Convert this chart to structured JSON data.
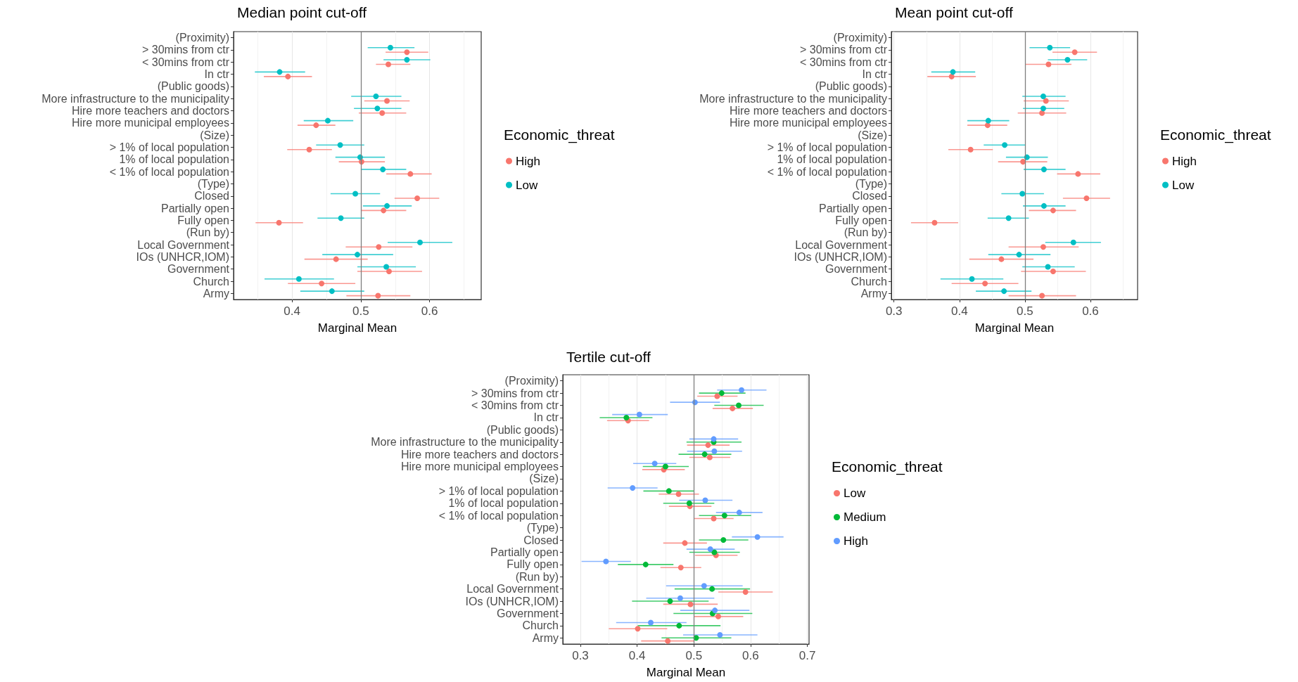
{
  "chart_data": [
    {
      "type": "scatter",
      "title": "Median point cut-off",
      "xlabel": "Marginal Mean",
      "legend_title": "Economic_threat",
      "orientation": "horizontal",
      "marker": "circle",
      "grid": "x",
      "legend": "right",
      "categories": [
        "(Proximity)",
        "> 30mins from ctr",
        "< 30mins from ctr",
        "In ctr",
        "(Public goods)",
        "More infrastructure to the municipality",
        "Hire more teachers and doctors",
        "Hire more municipal employees",
        "(Size)",
        "> 1% of local population",
        "1% of local population",
        "< 1% of local population",
        "(Type)",
        "Closed",
        "Partially open",
        "Fully open",
        "(Run by)",
        "Local Government",
        "IOs (UNHCR,IOM)",
        "Government",
        "Church",
        "Army"
      ],
      "xlim": [
        0.315,
        0.675
      ],
      "xticks": [
        0.4,
        0.5,
        0.6
      ],
      "ref_lines": [
        {
          "axis": "x",
          "value": 0.5,
          "color": "#7f7f7f"
        }
      ],
      "series": [
        {
          "name": "High",
          "color": "#f8766d",
          "values": [
            null,
            0.567,
            0.54,
            0.394,
            null,
            0.538,
            0.531,
            0.435,
            null,
            0.425,
            0.501,
            0.572,
            null,
            0.582,
            0.533,
            0.381,
            null,
            0.526,
            0.464,
            0.541,
            0.443,
            0.525
          ],
          "errors": [
            null,
            [
              0.536,
              0.598
            ],
            [
              0.522,
              0.572
            ],
            [
              0.359,
              0.429
            ],
            null,
            [
              0.505,
              0.571
            ],
            [
              0.497,
              0.566
            ],
            [
              0.408,
              0.463
            ],
            null,
            [
              0.393,
              0.458
            ],
            [
              0.468,
              0.535
            ],
            [
              0.537,
              0.603
            ],
            null,
            [
              0.549,
              0.614
            ],
            [
              0.5,
              0.566
            ],
            [
              0.347,
              0.416
            ],
            null,
            [
              0.478,
              0.575
            ],
            [
              0.418,
              0.51
            ],
            [
              0.495,
              0.589
            ],
            [
              0.394,
              0.492
            ],
            [
              0.479,
              0.572
            ]
          ]
        },
        {
          "name": "Low",
          "color": "#00bfc4",
          "values": [
            null,
            0.543,
            0.567,
            0.382,
            null,
            0.522,
            0.524,
            0.452,
            null,
            0.47,
            0.499,
            0.532,
            null,
            0.492,
            0.538,
            0.471,
            null,
            0.586,
            0.495,
            0.537,
            0.41,
            0.458
          ],
          "errors": [
            null,
            [
              0.51,
              0.578
            ],
            [
              0.533,
              0.601
            ],
            [
              0.346,
              0.419
            ],
            null,
            [
              0.486,
              0.559
            ],
            [
              0.49,
              0.559
            ],
            [
              0.417,
              0.489
            ],
            null,
            [
              0.435,
              0.505
            ],
            [
              0.463,
              0.535
            ],
            [
              0.5,
              0.566
            ],
            null,
            [
              0.456,
              0.528
            ],
            [
              0.503,
              0.574
            ],
            [
              0.437,
              0.505
            ],
            null,
            [
              0.539,
              0.633
            ],
            [
              0.444,
              0.547
            ],
            [
              0.495,
              0.58
            ],
            [
              0.36,
              0.461
            ],
            [
              0.412,
              0.505
            ]
          ]
        }
      ]
    },
    {
      "type": "scatter",
      "title": "Mean point cut-off",
      "xlabel": "Marginal Mean",
      "legend_title": "Economic_threat",
      "orientation": "horizontal",
      "marker": "circle",
      "grid": "x",
      "legend": "right",
      "categories": [
        "(Proximity)",
        "> 30mins from ctr",
        "< 30mins from ctr",
        "In ctr",
        "(Public goods)",
        "More infrastructure to the municipality",
        "Hire more teachers and doctors",
        "Hire more municipal employees",
        "(Size)",
        "> 1% of local population",
        "1% of local population",
        "< 1% of local population",
        "(Type)",
        "Closed",
        "Partially open",
        "Fully open",
        "(Run by)",
        "Local Government",
        "IOs (UNHCR,IOM)",
        "Government",
        "Church",
        "Army"
      ],
      "xlim": [
        0.296,
        0.672
      ],
      "xticks": [
        0.3,
        0.4,
        0.5,
        0.6
      ],
      "ref_lines": [
        {
          "axis": "x",
          "value": 0.5,
          "color": "#7f7f7f"
        }
      ],
      "series": [
        {
          "name": "High",
          "color": "#f8766d",
          "values": [
            null,
            0.576,
            0.536,
            0.388,
            null,
            0.532,
            0.526,
            0.443,
            null,
            0.417,
            0.497,
            0.581,
            null,
            0.594,
            0.543,
            0.362,
            null,
            0.528,
            0.464,
            0.543,
            0.439,
            0.526
          ],
          "errors": [
            null,
            [
              0.542,
              0.61
            ],
            [
              0.501,
              0.571
            ],
            [
              0.351,
              0.425
            ],
            null,
            [
              0.498,
              0.567
            ],
            [
              0.489,
              0.563
            ],
            [
              0.412,
              0.473
            ],
            null,
            [
              0.383,
              0.451
            ],
            [
              0.459,
              0.534
            ],
            [
              0.549,
              0.615
            ],
            null,
            [
              0.558,
              0.63
            ],
            [
              0.506,
              0.578
            ],
            [
              0.326,
              0.398
            ],
            null,
            [
              0.475,
              0.582
            ],
            [
              0.415,
              0.513
            ],
            [
              0.494,
              0.593
            ],
            [
              0.388,
              0.49
            ],
            [
              0.475,
              0.578
            ]
          ]
        },
        {
          "name": "Low",
          "color": "#00bfc4",
          "values": [
            null,
            0.538,
            0.565,
            0.39,
            null,
            0.528,
            0.528,
            0.444,
            null,
            0.469,
            0.503,
            0.529,
            null,
            0.496,
            0.529,
            0.475,
            null,
            0.574,
            0.491,
            0.535,
            0.419,
            0.468
          ],
          "errors": [
            null,
            [
              0.507,
              0.569
            ],
            [
              0.535,
              0.595
            ],
            [
              0.357,
              0.424
            ],
            null,
            [
              0.496,
              0.562
            ],
            [
              0.497,
              0.56
            ],
            [
              0.412,
              0.476
            ],
            null,
            [
              0.437,
              0.501
            ],
            [
              0.471,
              0.535
            ],
            [
              0.498,
              0.562
            ],
            null,
            [
              0.464,
              0.529
            ],
            [
              0.497,
              0.562
            ],
            [
              0.443,
              0.506
            ],
            null,
            [
              0.531,
              0.616
            ],
            [
              0.444,
              0.539
            ],
            [
              0.496,
              0.576
            ],
            [
              0.371,
              0.467
            ],
            [
              0.425,
              0.51
            ]
          ]
        }
      ]
    },
    {
      "type": "scatter",
      "title": "Tertile cut-off",
      "xlabel": "Marginal Mean",
      "legend_title": "Economic_threat",
      "orientation": "horizontal",
      "marker": "circle",
      "grid": "x",
      "legend": "right",
      "categories": [
        "(Proximity)",
        "> 30mins from ctr",
        "< 30mins from ctr",
        "In ctr",
        "(Public goods)",
        "More infrastructure to the municipality",
        "Hire more teachers and doctors",
        "Hire more municipal employees",
        "(Size)",
        "> 1% of local population",
        "1% of local population",
        "< 1% of local population",
        "(Type)",
        "Closed",
        "Partially open",
        "Fully open",
        "(Run by)",
        "Local Government",
        "IOs (UNHCR,IOM)",
        "Government",
        "Church",
        "Army"
      ],
      "xlim": [
        0.269,
        0.703
      ],
      "xticks": [
        0.3,
        0.4,
        0.5,
        0.6,
        0.7
      ],
      "ref_lines": [
        {
          "axis": "x",
          "value": 0.5,
          "color": "#7f7f7f"
        }
      ],
      "series": [
        {
          "name": "Low",
          "color": "#f8766d",
          "values": [
            null,
            0.541,
            0.568,
            0.384,
            null,
            0.525,
            0.528,
            0.447,
            null,
            0.473,
            0.493,
            0.535,
            null,
            0.484,
            0.539,
            0.477,
            null,
            0.591,
            0.494,
            0.543,
            0.401,
            0.454
          ],
          "errors": [
            null,
            [
              0.506,
              0.577
            ],
            [
              0.533,
              0.604
            ],
            [
              0.347,
              0.421
            ],
            null,
            [
              0.488,
              0.563
            ],
            [
              0.492,
              0.564
            ],
            [
              0.409,
              0.484
            ],
            null,
            [
              0.438,
              0.509
            ],
            [
              0.456,
              0.531
            ],
            [
              0.5,
              0.57
            ],
            null,
            [
              0.446,
              0.523
            ],
            [
              0.502,
              0.577
            ],
            [
              0.441,
              0.513
            ],
            null,
            [
              0.543,
              0.639
            ],
            [
              0.446,
              0.542
            ],
            [
              0.5,
              0.587
            ],
            [
              0.35,
              0.453
            ],
            [
              0.407,
              0.501
            ]
          ]
        },
        {
          "name": "Medium",
          "color": "#00ba38",
          "values": [
            null,
            0.549,
            0.579,
            0.381,
            null,
            0.535,
            0.519,
            0.45,
            null,
            0.456,
            0.492,
            0.554,
            null,
            0.552,
            0.536,
            0.415,
            null,
            0.532,
            0.458,
            0.533,
            0.474,
            0.504
          ],
          "errors": [
            null,
            [
              0.509,
              0.591
            ],
            [
              0.536,
              0.623
            ],
            [
              0.334,
              0.427
            ],
            null,
            [
              0.487,
              0.584
            ],
            [
              0.473,
              0.566
            ],
            [
              0.41,
              0.491
            ],
            null,
            [
              0.411,
              0.5
            ],
            [
              0.446,
              0.536
            ],
            [
              0.509,
              0.601
            ],
            null,
            [
              0.509,
              0.596
            ],
            [
              0.492,
              0.581
            ],
            [
              0.366,
              0.464
            ],
            null,
            [
              0.466,
              0.599
            ],
            [
              0.391,
              0.526
            ],
            [
              0.464,
              0.603
            ],
            [
              0.401,
              0.547
            ],
            [
              0.443,
              0.566
            ]
          ]
        },
        {
          "name": "High",
          "color": "#619cff",
          "values": [
            null,
            0.584,
            0.502,
            0.404,
            null,
            0.535,
            0.536,
            0.431,
            null,
            0.392,
            0.52,
            0.58,
            null,
            0.612,
            0.529,
            0.345,
            null,
            0.518,
            0.476,
            0.537,
            0.424,
            0.546
          ],
          "errors": [
            null,
            [
              0.541,
              0.628
            ],
            [
              0.458,
              0.546
            ],
            [
              0.356,
              0.454
            ],
            null,
            [
              0.492,
              0.578
            ],
            [
              0.488,
              0.585
            ],
            [
              0.393,
              0.469
            ],
            null,
            [
              0.348,
              0.436
            ],
            [
              0.474,
              0.568
            ],
            [
              0.539,
              0.621
            ],
            null,
            [
              0.567,
              0.658
            ],
            [
              0.487,
              0.572
            ],
            [
              0.302,
              0.389
            ],
            null,
            [
              0.451,
              0.586
            ],
            [
              0.416,
              0.536
            ],
            [
              0.476,
              0.598
            ],
            [
              0.363,
              0.487
            ],
            [
              0.481,
              0.612
            ]
          ]
        }
      ]
    }
  ]
}
